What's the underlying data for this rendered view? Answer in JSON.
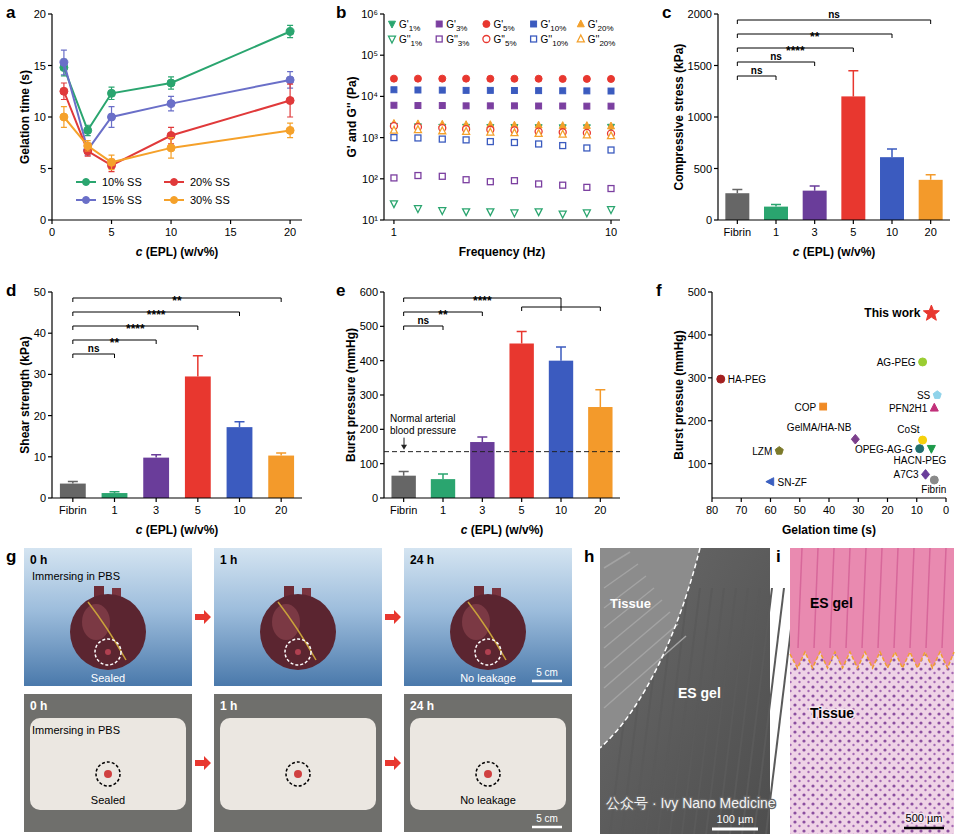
{
  "chart_data": [
    {
      "panel": "a",
      "type": "line",
      "x_label": "c (EPL) (w/v%)",
      "y_label": "Gelation time (s)",
      "x": [
        1,
        3,
        5,
        10,
        20
      ],
      "xlim": [
        0,
        21
      ],
      "xticks": [
        0,
        5,
        10,
        15,
        20
      ],
      "ylim": [
        0,
        20
      ],
      "yticks": [
        0,
        5,
        10,
        15,
        20
      ],
      "legend": "lower left",
      "marker": "circle",
      "series": [
        {
          "name": "10% SS",
          "color": "#2aa56f",
          "values": [
            14.8,
            8.7,
            12.3,
            13.3,
            18.3
          ],
          "errors": [
            0.8,
            0.5,
            0.6,
            0.6,
            0.6
          ]
        },
        {
          "name": "15% SS",
          "color": "#6a6fc8",
          "values": [
            15.3,
            6.8,
            10.0,
            11.3,
            13.6
          ],
          "errors": [
            1.2,
            0.5,
            1.0,
            0.7,
            0.8
          ]
        },
        {
          "name": "20% SS",
          "color": "#e0393a",
          "values": [
            12.5,
            6.7,
            5.3,
            8.2,
            11.6
          ],
          "errors": [
            0.8,
            0.5,
            0.6,
            0.8,
            1.6
          ]
        },
        {
          "name": "30% SS",
          "color": "#f5a12a",
          "values": [
            10.0,
            7.2,
            5.6,
            7.0,
            8.7
          ],
          "errors": [
            1.0,
            0.5,
            0.7,
            1.0,
            0.7
          ]
        }
      ]
    },
    {
      "panel": "b",
      "type": "scatter",
      "x_label": "Frequency (Hz)",
      "y_label": "G' and G'' (Pa)",
      "log": true,
      "x": [
        1,
        1.29,
        1.67,
        2.15,
        2.78,
        3.59,
        4.64,
        5.99,
        7.74,
        10
      ],
      "xlim": [
        0.9,
        11
      ],
      "xticks": [
        1,
        10
      ],
      "ylim": [
        10,
        1000000
      ],
      "yticks": [
        {
          "value": 10,
          "label": "10¹"
        },
        {
          "value": 100,
          "label": "10²"
        },
        {
          "value": 1000,
          "label": "10³"
        },
        {
          "value": 10000,
          "label": "10⁴"
        },
        {
          "value": 100000,
          "label": "10⁵"
        },
        {
          "value": 1000000,
          "label": "10⁶"
        }
      ],
      "legend": "top",
      "series": [
        {
          "name": "G'1%",
          "color": "#2aa56f",
          "marker": "triangle-down",
          "values": [
            1900,
            1850,
            1800,
            1800,
            1780,
            1780,
            1760,
            1750,
            1750,
            1800
          ]
        },
        {
          "name": "G'3%",
          "color": "#7b3fa0",
          "marker": "square",
          "values": [
            6100,
            6000,
            6000,
            5900,
            5900,
            5900,
            5850,
            5850,
            5800,
            5800
          ]
        },
        {
          "name": "G'5%",
          "color": "#e8372f",
          "marker": "circle",
          "values": [
            27000,
            27000,
            27000,
            27000,
            26800,
            26800,
            26800,
            26600,
            26600,
            26500
          ]
        },
        {
          "name": "G'10%",
          "color": "#3b5bbf",
          "marker": "square",
          "values": [
            14500,
            14300,
            14200,
            14000,
            14000,
            13900,
            13800,
            13700,
            13600,
            13500
          ]
        },
        {
          "name": "G'20%",
          "color": "#f3a02b",
          "marker": "triangle-up",
          "values": [
            2200,
            2150,
            2100,
            2050,
            2050,
            2000,
            2000,
            1950,
            1950,
            1900
          ]
        },
        {
          "name": "G''1%",
          "color": "#2aa56f",
          "marker": "triangle-down-open",
          "values": [
            25,
            19,
            17,
            16,
            16,
            15,
            16,
            14,
            15,
            18
          ]
        },
        {
          "name": "G''3%",
          "color": "#7b3fa0",
          "marker": "square-open",
          "values": [
            105,
            120,
            115,
            95,
            85,
            90,
            75,
            70,
            62,
            58
          ]
        },
        {
          "name": "G''5%",
          "color": "#e8372f",
          "marker": "circle-open",
          "values": [
            1900,
            1800,
            1700,
            1600,
            1550,
            1500,
            1400,
            1350,
            1300,
            1250
          ]
        },
        {
          "name": "G''10%",
          "color": "#3b5bbf",
          "marker": "square-open",
          "values": [
            1000,
            980,
            920,
            880,
            800,
            760,
            700,
            640,
            560,
            500
          ]
        },
        {
          "name": "G''20%",
          "color": "#f3a02b",
          "marker": "triangle-up-open",
          "values": [
            1500,
            1550,
            1450,
            1400,
            1350,
            1300,
            1250,
            1200,
            1150,
            1100
          ]
        }
      ]
    },
    {
      "panel": "c",
      "type": "bar",
      "x_label": "c (EPL) (w/v%)",
      "y_label": "Compressive stress (kPa)",
      "categories": [
        "Fibrin",
        "1",
        "3",
        "5",
        "10",
        "20"
      ],
      "values": [
        260,
        130,
        285,
        1200,
        610,
        390
      ],
      "errors": [
        35,
        20,
        45,
        250,
        80,
        50
      ],
      "colors": [
        "#666666",
        "#2aa56f",
        "#6a3d9a",
        "#e8372f",
        "#3b5bbf",
        "#f39a2b"
      ],
      "ylim": [
        0,
        2000
      ],
      "yticks": [
        0,
        500,
        1000,
        1500,
        2000
      ],
      "significance": [
        {
          "from": "Fibrin",
          "to": "1",
          "label": "ns"
        },
        {
          "from": "Fibrin",
          "to": "3",
          "label": "ns"
        },
        {
          "from": "Fibrin",
          "to": "5",
          "label": "****"
        },
        {
          "from": "Fibrin",
          "to": "10",
          "label": "**"
        },
        {
          "from": "Fibrin",
          "to": "20",
          "label": "ns"
        }
      ]
    },
    {
      "panel": "d",
      "type": "bar",
      "x_label": "c (EPL) (w/v%)",
      "y_label": "Shear strength (kPa)",
      "categories": [
        "Fibrin",
        "1",
        "3",
        "5",
        "10",
        "20"
      ],
      "values": [
        3.5,
        1.2,
        9.8,
        29.5,
        17.2,
        10.3
      ],
      "errors": [
        0.5,
        0.3,
        0.7,
        5.0,
        1.3,
        0.6
      ],
      "colors": [
        "#666666",
        "#2aa56f",
        "#6a3d9a",
        "#e8372f",
        "#3b5bbf",
        "#f39a2b"
      ],
      "ylim": [
        0,
        50
      ],
      "yticks": [
        0,
        10,
        20,
        30,
        40,
        50
      ],
      "significance": [
        {
          "from": "Fibrin",
          "to": "1",
          "label": "ns"
        },
        {
          "from": "Fibrin",
          "to": "3",
          "label": "**"
        },
        {
          "from": "Fibrin",
          "to": "5",
          "label": "****"
        },
        {
          "from": "Fibrin",
          "to": "10",
          "label": "****"
        },
        {
          "from": "Fibrin",
          "to": "20",
          "label": "**"
        }
      ]
    },
    {
      "panel": "e",
      "type": "bar",
      "x_label": "c (EPL) (w/v%)",
      "y_label": "Burst pressure (mmHg)",
      "categories": [
        "Fibrin",
        "1",
        "3",
        "5",
        "10",
        "20"
      ],
      "values": [
        65,
        55,
        163,
        450,
        400,
        265
      ],
      "errors": [
        12,
        15,
        15,
        35,
        40,
        50
      ],
      "colors": [
        "#666666",
        "#2aa56f",
        "#6a3d9a",
        "#e8372f",
        "#3b5bbf",
        "#f39a2b"
      ],
      "ylim": [
        0,
        600
      ],
      "yticks": [
        0,
        100,
        200,
        300,
        400,
        500,
        600
      ],
      "reference_line": {
        "value": 135,
        "label": "Normal arterial blood pressure"
      },
      "significance": [
        {
          "from": "Fibrin",
          "to": "1",
          "label": "ns"
        },
        {
          "from": "Fibrin",
          "to": "3",
          "label": "**"
        },
        {
          "from": "Fibrin",
          "to": [
            "5",
            "10",
            "20"
          ],
          "label": "****"
        }
      ]
    },
    {
      "panel": "f",
      "type": "scatter",
      "x_label": "Gelation time (s)",
      "y_label": "Burst pressue (mmHg)",
      "xlim": [
        80,
        0
      ],
      "xticks": [
        80,
        70,
        60,
        50,
        40,
        30,
        20,
        10,
        0
      ],
      "ylim": [
        20,
        500
      ],
      "yticks": [
        100,
        200,
        300,
        400,
        500
      ],
      "series": [
        {
          "name": "This work",
          "color": "#e8372f",
          "marker": "star",
          "x": [
            5
          ],
          "values": [
            450
          ]
        },
        {
          "name": "AG-PEG",
          "color": "#9acd32",
          "marker": "circle",
          "x": [
            8
          ],
          "values": [
            337
          ]
        },
        {
          "name": "HA-PEG",
          "color": "#a32020",
          "marker": "circle",
          "x": [
            77
          ],
          "values": [
            297
          ]
        },
        {
          "name": "SS",
          "color": "#8fd3ea",
          "marker": "pentagon",
          "x": [
            3
          ],
          "values": [
            260
          ]
        },
        {
          "name": "COP",
          "color": "#f08a24",
          "marker": "square",
          "x": [
            42
          ],
          "values": [
            233
          ]
        },
        {
          "name": "PFN2H1",
          "color": "#c2307a",
          "marker": "triangle-up",
          "x": [
            4
          ],
          "values": [
            230
          ]
        },
        {
          "name": "GelMA/HA-NB",
          "color": "#7b3f8c",
          "marker": "diamond",
          "x": [
            31
          ],
          "values": [
            157
          ]
        },
        {
          "name": "CoSt",
          "color": "#f5d10c",
          "marker": "circle",
          "x": [
            8
          ],
          "values": [
            155
          ]
        },
        {
          "name": "LZM",
          "color": "#7c7a2a",
          "marker": "pentagon",
          "x": [
            57
          ],
          "values": [
            130
          ]
        },
        {
          "name": "OPEG-AG-G",
          "color": "#1f6e6e",
          "marker": "circle",
          "x": [
            9
          ],
          "values": [
            135
          ]
        },
        {
          "name": "HACN-PEG",
          "color": "#1d9a4a",
          "marker": "triangle-down",
          "x": [
            5
          ],
          "values": [
            135
          ]
        },
        {
          "name": "A7C3",
          "color": "#6a3d9a",
          "marker": "diamond",
          "x": [
            7
          ],
          "values": [
            75
          ]
        },
        {
          "name": "SN-ZF",
          "color": "#3b5fc0",
          "marker": "triangle-left",
          "x": [
            60
          ],
          "values": [
            58
          ]
        },
        {
          "name": "Fibrin",
          "color": "#8a8a8a",
          "marker": "circle",
          "x": [
            4
          ],
          "values": [
            62
          ]
        }
      ]
    }
  ],
  "images": {
    "g": {
      "panel": "g",
      "rows": [
        {
          "frames": [
            {
              "time": "0 h",
              "labels": [
                "Immersing in PBS",
                "Sealed"
              ]
            },
            {
              "time": "1 h",
              "labels": []
            },
            {
              "time": "24 h",
              "labels": [
                "No leakage"
              ],
              "scale_bar": "5 cm"
            }
          ]
        },
        {
          "frames": [
            {
              "time": "0 h",
              "labels": [
                "Immersing in PBS",
                "Sealed"
              ]
            },
            {
              "time": "1 h",
              "labels": []
            },
            {
              "time": "24 h",
              "labels": [
                "No leakage"
              ],
              "scale_bar": "5 cm"
            }
          ]
        }
      ]
    },
    "h": {
      "panel": "h",
      "labels": [
        "Tissue",
        "ES gel"
      ],
      "scale_bar": "100 µm"
    },
    "i": {
      "panel": "i",
      "labels": [
        "ES gel",
        "Tissue"
      ],
      "scale_bar": "500 µm"
    }
  },
  "watermark": "公众号 · Ivy Nano Medicine"
}
